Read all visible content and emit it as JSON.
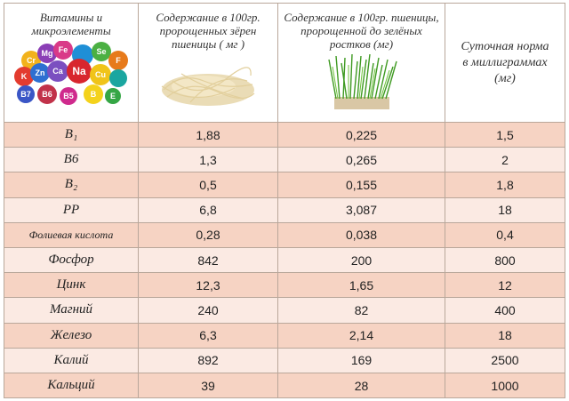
{
  "headers": {
    "col0": "Витамины и микроэлементы",
    "col1": "Содержание в 100гр. пророщенных зёрен пшеницы ( мг )",
    "col2": "Содержание в 100гр. пшеницы, пророщенной до зелёных ростков (мг)",
    "col3": "Суточная норма в миллиграммах (мг)"
  },
  "element_balls": [
    "Fe",
    "Se",
    "Mg",
    "Na",
    "Ca",
    "Zn",
    "Cu",
    "F",
    "Cr",
    "K",
    "B7",
    "B6",
    "B5",
    "E",
    "B"
  ],
  "rows": [
    {
      "name": "B₁",
      "sprout": "1,88",
      "green": "0,225",
      "norm": "1,5"
    },
    {
      "name": "B6",
      "sprout": "1,3",
      "green": "0,265",
      "norm": "2"
    },
    {
      "name": "B₂",
      "sprout": "0,5",
      "green": "0,155",
      "norm": "1,8"
    },
    {
      "name": "PP",
      "sprout": "6,8",
      "green": "3,087",
      "norm": "18"
    },
    {
      "name": "Фолиевая кислота",
      "sprout": "0,28",
      "green": "0,038",
      "norm": "0,4"
    },
    {
      "name": "Фосфор",
      "sprout": "842",
      "green": "200",
      "norm": "800"
    },
    {
      "name": "Цинк",
      "sprout": "12,3",
      "green": "1,65",
      "norm": "12"
    },
    {
      "name": "Магний",
      "sprout": "240",
      "green": "82",
      "norm": "400"
    },
    {
      "name": "Железо",
      "sprout": "6,3",
      "green": "2,14",
      "norm": "18"
    },
    {
      "name": "Калий",
      "sprout": "892",
      "green": "169",
      "norm": "2500"
    },
    {
      "name": "Кальций",
      "sprout": "39",
      "green": "28",
      "norm": "1000"
    }
  ],
  "colors": {
    "odd_row": "#f6d3c3",
    "even_row": "#fbeae3",
    "border": "#b9a79a"
  }
}
